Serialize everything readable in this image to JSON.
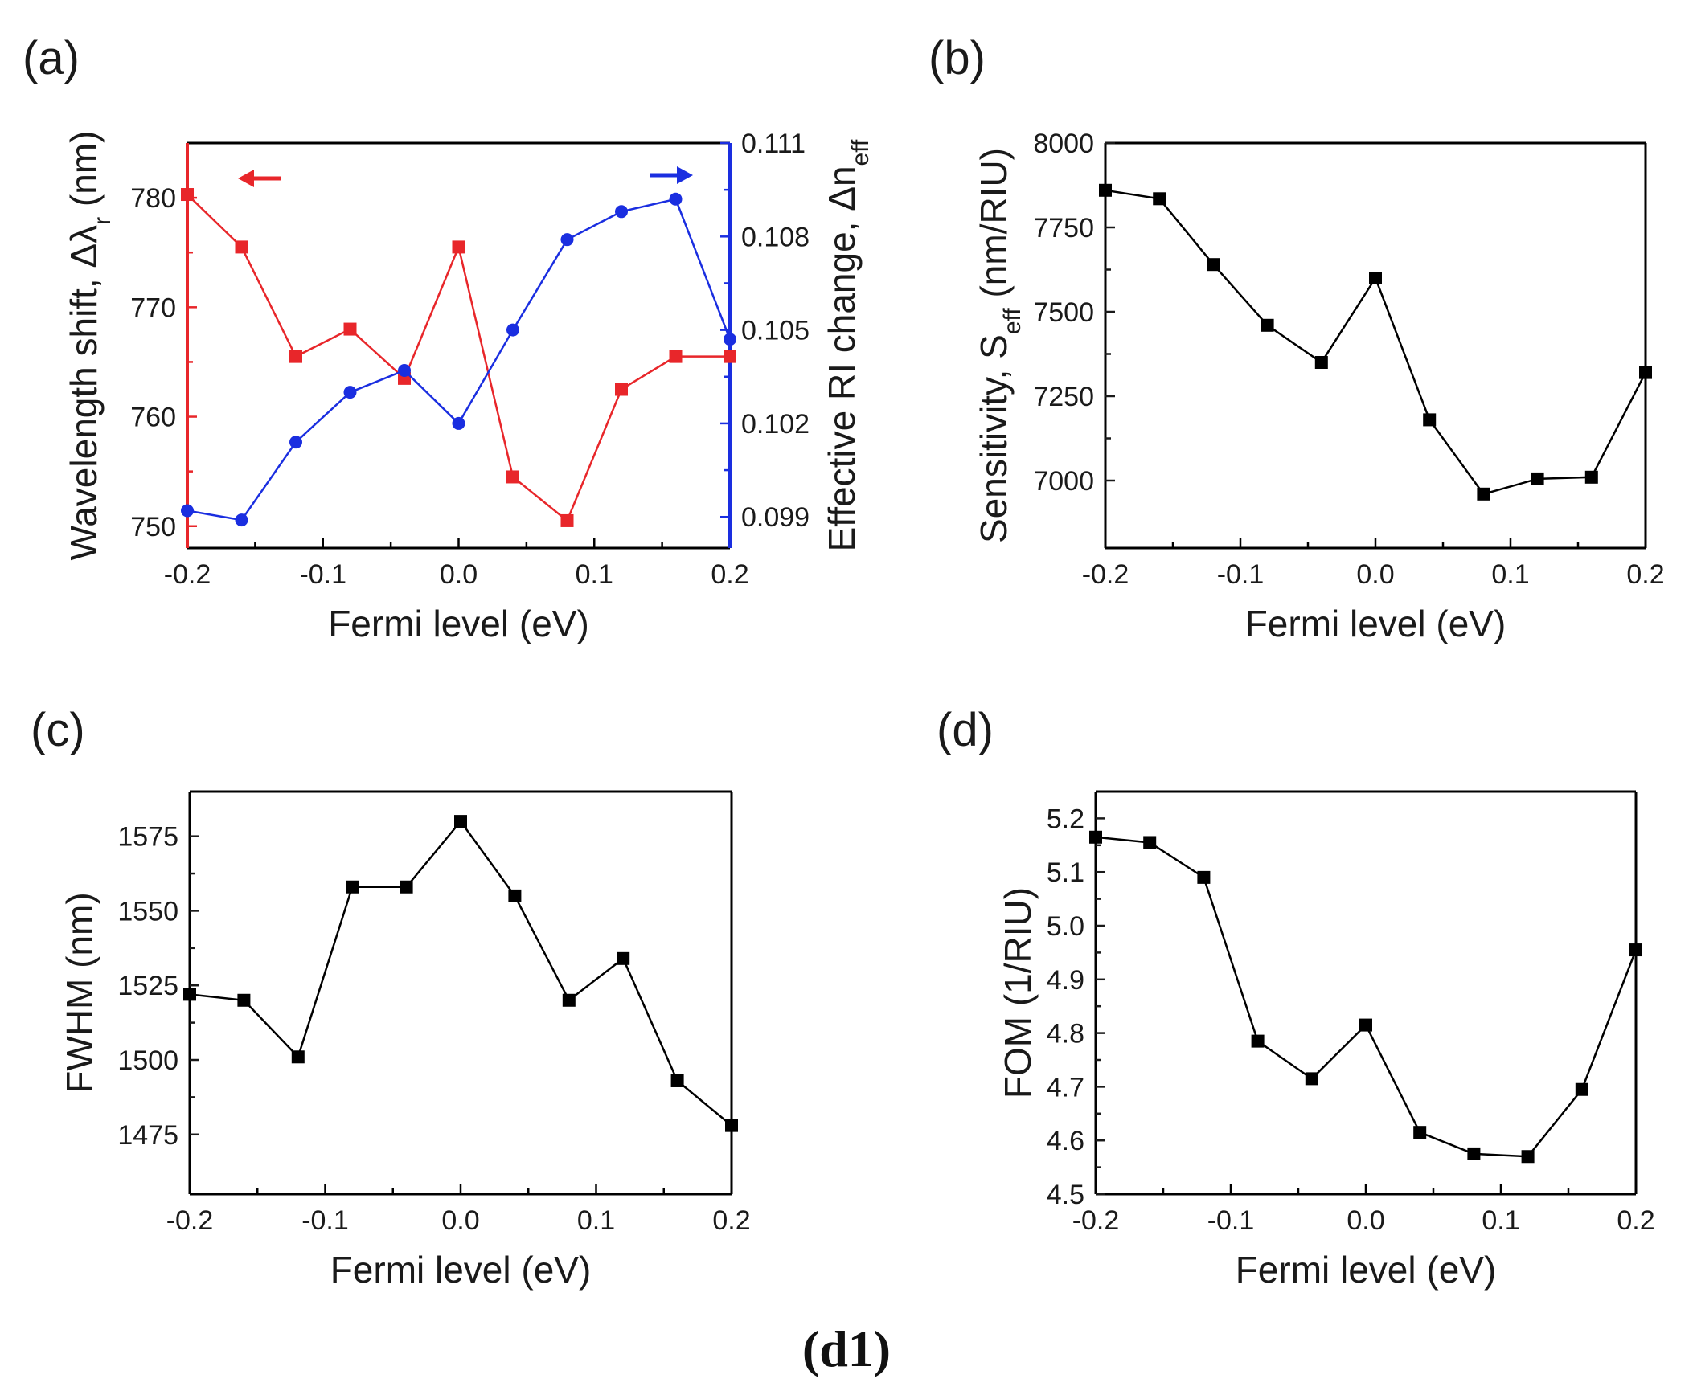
{
  "figure_label": "(d1)",
  "chart_data": [
    {
      "panel": "(a)",
      "type": "line",
      "x": [
        -0.2,
        -0.16,
        -0.12,
        -0.08,
        -0.04,
        0.0,
        0.04,
        0.08,
        0.12,
        0.16,
        0.2
      ],
      "xlabel": "Fermi level (eV)",
      "xlim": [
        -0.2,
        0.2
      ],
      "xticks": [
        "-0.2",
        "-0.1",
        "0.0",
        "0.1",
        "0.2"
      ],
      "series": [
        {
          "name": "Wavelength shift",
          "axis": "left",
          "color": "#e8262a",
          "marker": "square",
          "values": [
            780.3,
            775.5,
            765.5,
            768.0,
            763.5,
            775.5,
            754.5,
            750.5,
            762.5,
            765.5,
            765.5
          ]
        },
        {
          "name": "Effective RI change",
          "axis": "right",
          "color": "#1a2ee0",
          "marker": "circle",
          "values": [
            0.0992,
            0.0989,
            0.1014,
            0.103,
            0.1037,
            0.102,
            0.105,
            0.1079,
            0.1088,
            0.1092,
            0.1047
          ]
        }
      ],
      "ylabel_left": "Wavelength shift, Δλ",
      "ylabel_left_sub": "r",
      "ylabel_left_suffix": " (nm)",
      "ylim_left": [
        748,
        785
      ],
      "yticks_left": [
        "750",
        "760",
        "770",
        "780"
      ],
      "ylabel_right": "Effective RI change, Δn",
      "ylabel_right_sub": "eff",
      "ylim_right": [
        0.098,
        0.111
      ],
      "yticks_right": [
        "0.099",
        "0.102",
        "0.105",
        "0.108",
        "0.111"
      ],
      "left_color": "#e8262a",
      "right_color": "#1a2ee0"
    },
    {
      "panel": "(b)",
      "type": "line",
      "x": [
        -0.2,
        -0.16,
        -0.12,
        -0.08,
        -0.04,
        0.0,
        0.04,
        0.08,
        0.12,
        0.16,
        0.2
      ],
      "values": [
        7860,
        7835,
        7640,
        7460,
        7350,
        7600,
        7180,
        6960,
        7005,
        7010,
        7320
      ],
      "xlabel": "Fermi level (eV)",
      "xlim": [
        -0.2,
        0.2
      ],
      "xticks": [
        "-0.2",
        "-0.1",
        "0.0",
        "0.1",
        "0.2"
      ],
      "ylabel": "Sensitivity, S",
      "ylabel_sub": "eff",
      "ylabel_suffix": " (nm/RIU)",
      "ylim": [
        6800,
        8000
      ],
      "yticks": [
        "7000",
        "7250",
        "7500",
        "7750",
        "8000"
      ],
      "color": "#000000",
      "marker": "square"
    },
    {
      "panel": "(c)",
      "type": "line",
      "x": [
        -0.2,
        -0.16,
        -0.12,
        -0.08,
        -0.04,
        0.0,
        0.04,
        0.08,
        0.12,
        0.16,
        0.2
      ],
      "values": [
        1522,
        1520,
        1501,
        1558,
        1558,
        1580,
        1555,
        1520,
        1534,
        1493,
        1478
      ],
      "xlabel": "Fermi level (eV)",
      "xlim": [
        -0.2,
        0.2
      ],
      "xticks": [
        "-0.2",
        "-0.1",
        "0.0",
        "0.1",
        "0.2"
      ],
      "ylabel": "FWHM (nm)",
      "ylim": [
        1455,
        1590
      ],
      "yticks": [
        "1475",
        "1500",
        "1525",
        "1550",
        "1575"
      ],
      "color": "#000000",
      "marker": "square"
    },
    {
      "panel": "(d)",
      "type": "line",
      "x": [
        -0.2,
        -0.16,
        -0.12,
        -0.08,
        -0.04,
        0.0,
        0.04,
        0.08,
        0.12,
        0.16,
        0.2
      ],
      "values": [
        5.165,
        5.155,
        5.09,
        4.785,
        4.715,
        4.815,
        4.615,
        4.575,
        4.57,
        4.695,
        4.955
      ],
      "xlabel": "Fermi level (eV)",
      "xlim": [
        -0.2,
        0.2
      ],
      "xticks": [
        "-0.2",
        "-0.1",
        "0.0",
        "0.1",
        "0.2"
      ],
      "ylabel": "FOM (1/RIU)",
      "ylim": [
        4.5,
        5.25
      ],
      "yticks": [
        "4.5",
        "4.6",
        "4.7",
        "4.8",
        "4.9",
        "5.0",
        "5.1",
        "5.2"
      ],
      "color": "#000000",
      "marker": "square"
    }
  ]
}
